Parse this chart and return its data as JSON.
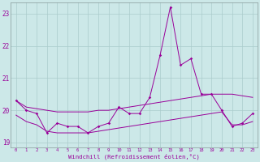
{
  "hours": [
    0,
    1,
    2,
    3,
    4,
    5,
    6,
    7,
    8,
    9,
    10,
    11,
    12,
    13,
    14,
    15,
    16,
    17,
    18,
    19,
    20,
    21,
    22,
    23
  ],
  "line_main": [
    20.3,
    20.0,
    19.9,
    19.3,
    19.6,
    19.5,
    19.5,
    19.3,
    19.5,
    19.6,
    20.1,
    19.9,
    19.9,
    20.4,
    21.7,
    23.2,
    21.4,
    21.6,
    20.5,
    20.5,
    20.0,
    19.5,
    19.6,
    19.9
  ],
  "line_upper": [
    20.3,
    20.1,
    20.05,
    20.0,
    19.95,
    19.95,
    19.95,
    19.95,
    20.0,
    20.0,
    20.05,
    20.1,
    20.15,
    20.2,
    20.25,
    20.3,
    20.35,
    20.4,
    20.45,
    20.5,
    20.5,
    20.5,
    20.45,
    20.4
  ],
  "line_lower": [
    19.85,
    19.65,
    19.55,
    19.35,
    19.3,
    19.3,
    19.3,
    19.3,
    19.35,
    19.4,
    19.45,
    19.5,
    19.55,
    19.6,
    19.65,
    19.7,
    19.75,
    19.8,
    19.85,
    19.9,
    19.95,
    19.55,
    19.55,
    19.65
  ],
  "color": "#990099",
  "bg_color": "#cce8e8",
  "grid_color": "#aacccc",
  "ylim_min": 18.85,
  "ylim_max": 23.35,
  "yticks": [
    19,
    20,
    21,
    22,
    23
  ],
  "xlabel": "Windchill (Refroidissement éolien,°C)"
}
